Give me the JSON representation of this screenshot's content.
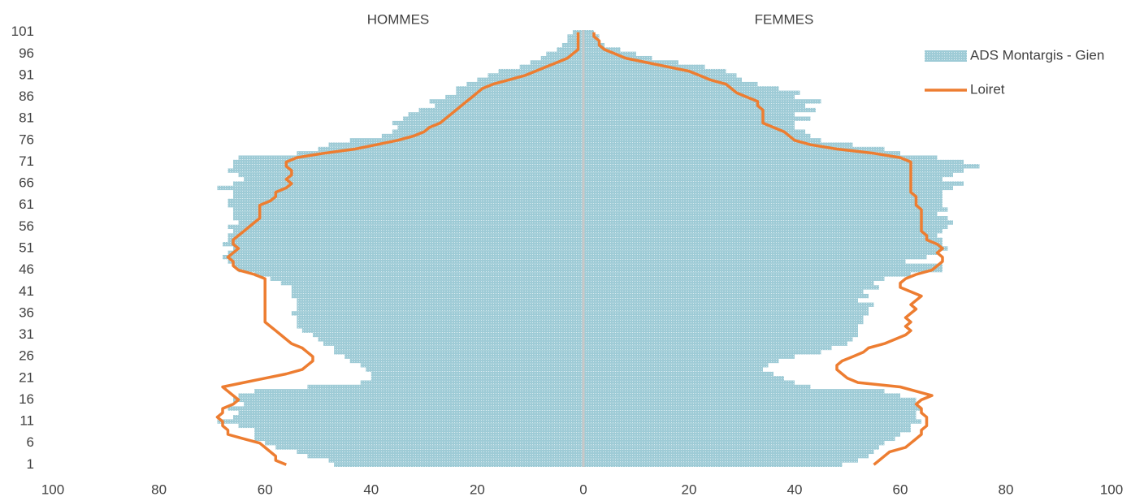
{
  "chart_data": {
    "type": "pyramid",
    "y": [
      1,
      2,
      3,
      4,
      5,
      6,
      7,
      8,
      9,
      10,
      11,
      12,
      13,
      14,
      15,
      16,
      17,
      18,
      19,
      20,
      21,
      22,
      23,
      24,
      25,
      26,
      27,
      28,
      29,
      30,
      31,
      32,
      33,
      34,
      35,
      36,
      37,
      38,
      39,
      40,
      41,
      42,
      43,
      44,
      45,
      46,
      47,
      48,
      49,
      50,
      51,
      52,
      53,
      54,
      55,
      56,
      57,
      58,
      59,
      60,
      61,
      62,
      63,
      64,
      65,
      66,
      67,
      68,
      69,
      70,
      71,
      72,
      73,
      74,
      75,
      76,
      77,
      78,
      79,
      80,
      81,
      82,
      83,
      84,
      85,
      86,
      87,
      88,
      89,
      90,
      91,
      92,
      93,
      94,
      95,
      96,
      97,
      98,
      99,
      100,
      101
    ],
    "ylim": [
      0.5,
      101.5
    ],
    "yticks": [
      1,
      6,
      11,
      16,
      21,
      26,
      31,
      36,
      41,
      46,
      51,
      56,
      61,
      66,
      71,
      76,
      81,
      86,
      91,
      96,
      101
    ],
    "panels": [
      {
        "title": "HOMMES",
        "xlim": [
          100,
          0
        ],
        "xticks": [
          100,
          80,
          60,
          40,
          20
        ]
      },
      {
        "title": "FEMMES",
        "xlim": [
          0,
          100
        ],
        "xticks": [
          0,
          20,
          40,
          60,
          80,
          100
        ]
      }
    ],
    "series": [
      {
        "name": "ADS Montargis - Gien",
        "kind": "bar",
        "color": "#9ecbd6",
        "values": [
          [
            47,
            48,
            52,
            54,
            58,
            60,
            62,
            62,
            62,
            65,
            69,
            66,
            65,
            67,
            64,
            66,
            65,
            62,
            52,
            42,
            40,
            40,
            41,
            42,
            44,
            45,
            47,
            47,
            49,
            50,
            51,
            53,
            54,
            54,
            54,
            55,
            54,
            54,
            54,
            55,
            55,
            55,
            57,
            59,
            62,
            65,
            66,
            67,
            68,
            67,
            66,
            68,
            67,
            67,
            66,
            67,
            65,
            66,
            66,
            66,
            67,
            67,
            66,
            66,
            69,
            66,
            64,
            65,
            67,
            66,
            66,
            65,
            54,
            50,
            48,
            44,
            38,
            36,
            35,
            36,
            34,
            33,
            31,
            28,
            29,
            26,
            24,
            24,
            22,
            20,
            18,
            16,
            12,
            10,
            8,
            7,
            5,
            4,
            3,
            3,
            2
          ],
          [
            49,
            52,
            54,
            55,
            56,
            57,
            59,
            60,
            62,
            62,
            64,
            63,
            63,
            64,
            63,
            63,
            60,
            57,
            43,
            40,
            38,
            36,
            34,
            35,
            37,
            40,
            45,
            47,
            50,
            51,
            52,
            52,
            52,
            53,
            53,
            54,
            54,
            55,
            52,
            54,
            53,
            56,
            55,
            57,
            62,
            68,
            68,
            61,
            65,
            67,
            69,
            68,
            68,
            67,
            68,
            69,
            70,
            69,
            67,
            69,
            68,
            68,
            68,
            68,
            70,
            72,
            68,
            70,
            72,
            75,
            72,
            67,
            60,
            57,
            51,
            45,
            43,
            42,
            40,
            40,
            43,
            40,
            44,
            42,
            45,
            40,
            41,
            37,
            33,
            30,
            29,
            27,
            23,
            18,
            13,
            10,
            7,
            4,
            3,
            3,
            2
          ]
        ]
      },
      {
        "name": "Loiret",
        "kind": "line",
        "color": "#ed7d31",
        "values": [
          [
            56,
            58,
            58,
            59,
            60,
            61,
            64,
            67,
            67,
            68,
            68,
            69,
            68,
            68,
            66,
            65,
            66,
            67,
            68,
            64,
            60,
            56,
            53,
            52,
            51,
            51,
            52,
            53,
            55,
            56,
            57,
            58,
            59,
            60,
            60,
            60,
            60,
            60,
            60,
            60,
            60,
            60,
            60,
            60,
            62,
            65,
            66,
            66,
            67,
            66,
            65,
            66,
            66,
            65,
            64,
            63,
            62,
            61,
            61,
            61,
            61,
            59,
            58,
            58,
            56,
            55,
            56,
            55,
            55,
            56,
            56,
            54,
            49,
            43,
            39,
            35,
            32,
            30,
            29,
            27,
            26,
            25,
            24,
            23,
            22,
            21,
            20,
            19,
            17,
            14,
            11,
            9,
            7,
            5,
            3,
            2,
            1,
            1,
            1,
            1,
            1
          ],
          [
            55,
            56,
            57,
            58,
            61,
            62,
            63,
            64,
            64,
            65,
            65,
            65,
            64,
            64,
            63,
            64,
            66,
            63,
            60,
            52,
            50,
            49,
            48,
            48,
            49,
            51,
            53,
            54,
            57,
            59,
            61,
            62,
            61,
            62,
            61,
            62,
            63,
            62,
            63,
            64,
            62,
            60,
            60,
            61,
            63,
            66,
            67,
            68,
            68,
            67,
            68,
            67,
            65,
            65,
            64,
            64,
            64,
            64,
            64,
            64,
            63,
            63,
            63,
            62,
            62,
            62,
            62,
            62,
            62,
            62,
            62,
            60,
            55,
            48,
            43,
            40,
            39,
            38,
            36,
            34,
            34,
            34,
            34,
            33,
            33,
            31,
            29,
            28,
            27,
            24,
            22,
            20,
            16,
            12,
            8,
            6,
            4,
            3,
            3,
            2,
            2
          ]
        ]
      }
    ]
  }
}
